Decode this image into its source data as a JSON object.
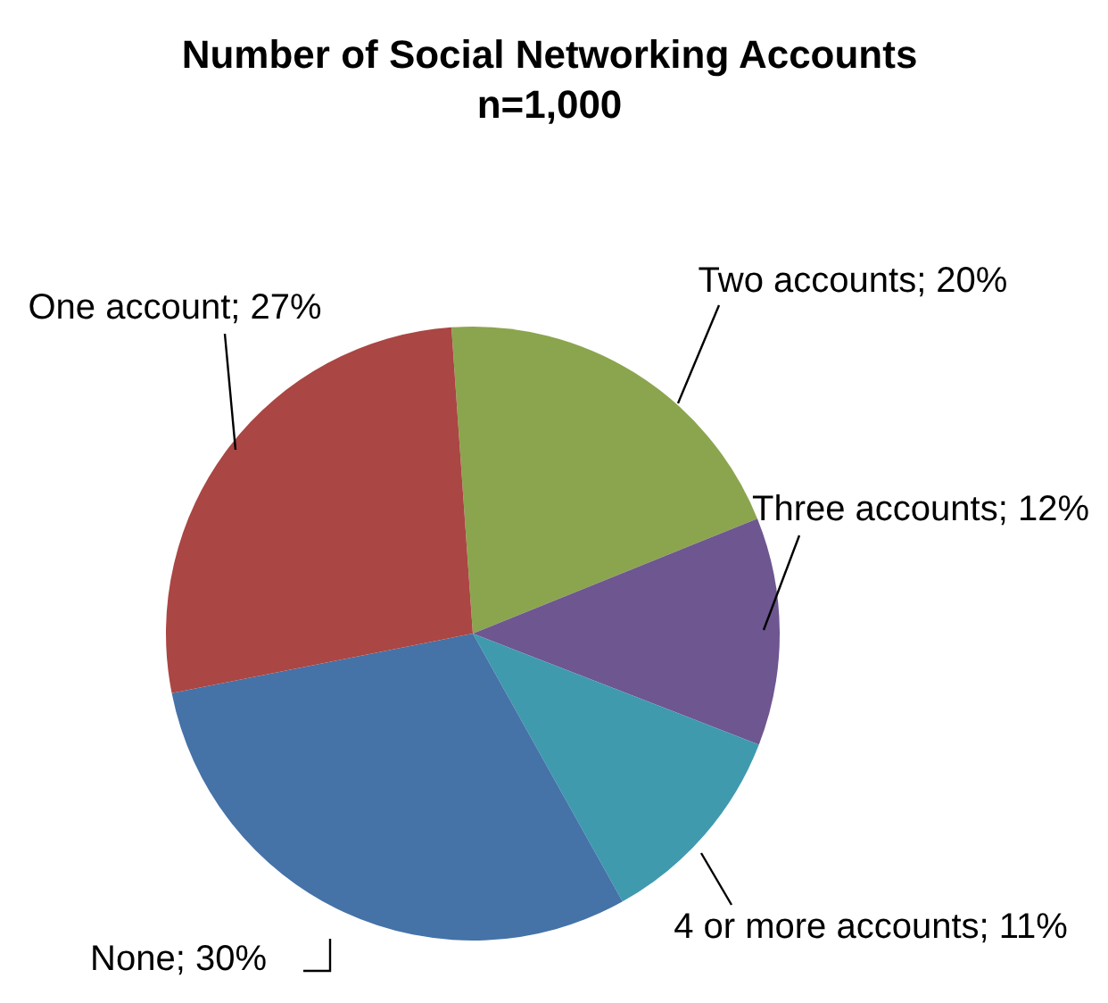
{
  "chart_data": {
    "type": "pie",
    "title": "Number of Social Networking Accounts",
    "subtitle": "n=1,000",
    "categories": [
      "Two accounts",
      "Three accounts",
      "4 or more accounts",
      "None",
      "One account"
    ],
    "values": [
      20,
      12,
      11,
      30,
      27
    ],
    "colors": [
      "#8ba54e",
      "#6e5690",
      "#3f9aae",
      "#4572a7",
      "#aa4643"
    ],
    "value_labels": [
      "20%",
      "12%",
      "11%",
      "30%",
      "27%"
    ],
    "legend": false
  }
}
